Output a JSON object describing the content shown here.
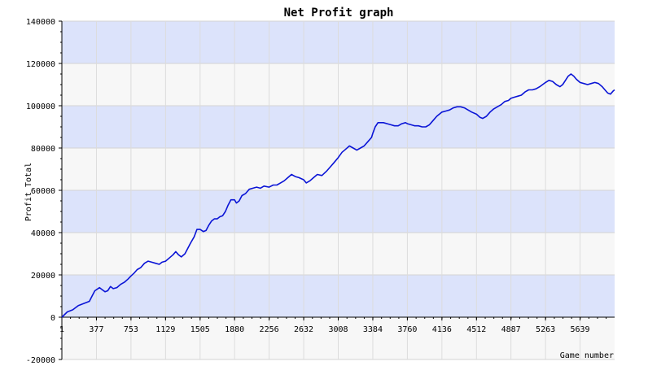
{
  "chart_data": {
    "type": "line",
    "title": "Net Profit graph",
    "xlabel": "Game number",
    "ylabel": "Profit Total",
    "xlim": [
      1,
      6015
    ],
    "ylim": [
      -20000,
      140000
    ],
    "x_ticks": [
      "1",
      "377",
      "753",
      "1129",
      "1505",
      "1880",
      "2256",
      "2632",
      "3008",
      "3384",
      "3760",
      "4136",
      "4512",
      "4887",
      "5263",
      "5639"
    ],
    "y_ticks": [
      "140000",
      "120000",
      "100000",
      "80000",
      "60000",
      "40000",
      "20000",
      "0",
      "-20000"
    ],
    "grid": true,
    "band_colors": [
      "#dce3fb",
      "#f7f7f7"
    ],
    "line_color": "#0a14d6",
    "series": [
      {
        "points": [
          [
            1,
            0
          ],
          [
            60,
            2500
          ],
          [
            120,
            3500
          ],
          [
            180,
            5500
          ],
          [
            240,
            6500
          ],
          [
            300,
            7500
          ],
          [
            330,
            10000
          ],
          [
            360,
            12500
          ],
          [
            377,
            13000
          ],
          [
            410,
            14000
          ],
          [
            440,
            13000
          ],
          [
            470,
            12000
          ],
          [
            500,
            12500
          ],
          [
            530,
            14500
          ],
          [
            560,
            13500
          ],
          [
            600,
            14000
          ],
          [
            640,
            15500
          ],
          [
            680,
            16500
          ],
          [
            720,
            18000
          ],
          [
            753,
            19500
          ],
          [
            790,
            21000
          ],
          [
            820,
            22500
          ],
          [
            860,
            23500
          ],
          [
            900,
            25500
          ],
          [
            940,
            26500
          ],
          [
            980,
            26000
          ],
          [
            1020,
            25500
          ],
          [
            1060,
            25000
          ],
          [
            1090,
            26000
          ],
          [
            1129,
            26500
          ],
          [
            1170,
            28000
          ],
          [
            1210,
            29500
          ],
          [
            1240,
            31000
          ],
          [
            1270,
            29500
          ],
          [
            1300,
            28500
          ],
          [
            1340,
            30000
          ],
          [
            1370,
            32500
          ],
          [
            1400,
            35000
          ],
          [
            1440,
            38000
          ],
          [
            1470,
            41500
          ],
          [
            1505,
            41500
          ],
          [
            1540,
            40500
          ],
          [
            1570,
            41000
          ],
          [
            1600,
            43500
          ],
          [
            1630,
            45500
          ],
          [
            1660,
            46500
          ],
          [
            1690,
            46500
          ],
          [
            1720,
            47500
          ],
          [
            1750,
            48000
          ],
          [
            1780,
            50000
          ],
          [
            1810,
            53000
          ],
          [
            1840,
            55500
          ],
          [
            1880,
            55500
          ],
          [
            1900,
            54000
          ],
          [
            1930,
            55000
          ],
          [
            1960,
            57500
          ],
          [
            2000,
            58500
          ],
          [
            2040,
            60500
          ],
          [
            2080,
            61000
          ],
          [
            2120,
            61500
          ],
          [
            2160,
            61000
          ],
          [
            2200,
            62000
          ],
          [
            2256,
            61500
          ],
          [
            2300,
            62500
          ],
          [
            2340,
            62500
          ],
          [
            2380,
            63500
          ],
          [
            2420,
            64500
          ],
          [
            2460,
            66000
          ],
          [
            2500,
            67500
          ],
          [
            2540,
            66500
          ],
          [
            2580,
            66000
          ],
          [
            2632,
            65000
          ],
          [
            2660,
            63500
          ],
          [
            2700,
            64500
          ],
          [
            2740,
            66000
          ],
          [
            2780,
            67500
          ],
          [
            2830,
            67000
          ],
          [
            2880,
            69000
          ],
          [
            2920,
            71000
          ],
          [
            2960,
            73000
          ],
          [
            3008,
            75500
          ],
          [
            3050,
            78000
          ],
          [
            3090,
            79500
          ],
          [
            3130,
            81000
          ],
          [
            3170,
            80000
          ],
          [
            3210,
            79000
          ],
          [
            3250,
            80000
          ],
          [
            3290,
            81000
          ],
          [
            3330,
            83000
          ],
          [
            3370,
            85000
          ],
          [
            3384,
            87000
          ],
          [
            3410,
            90000
          ],
          [
            3440,
            92000
          ],
          [
            3470,
            92000
          ],
          [
            3500,
            92000
          ],
          [
            3540,
            91500
          ],
          [
            3580,
            91000
          ],
          [
            3620,
            90500
          ],
          [
            3660,
            90500
          ],
          [
            3700,
            91500
          ],
          [
            3740,
            92000
          ],
          [
            3760,
            91500
          ],
          [
            3800,
            91000
          ],
          [
            3840,
            90500
          ],
          [
            3880,
            90500
          ],
          [
            3920,
            90000
          ],
          [
            3960,
            90000
          ],
          [
            4000,
            91000
          ],
          [
            4040,
            93000
          ],
          [
            4080,
            95000
          ],
          [
            4136,
            97000
          ],
          [
            4180,
            97500
          ],
          [
            4220,
            98000
          ],
          [
            4260,
            99000
          ],
          [
            4300,
            99500
          ],
          [
            4340,
            99500
          ],
          [
            4380,
            99000
          ],
          [
            4420,
            98000
          ],
          [
            4460,
            97000
          ],
          [
            4512,
            96000
          ],
          [
            4550,
            94500
          ],
          [
            4580,
            94000
          ],
          [
            4620,
            95000
          ],
          [
            4660,
            97000
          ],
          [
            4700,
            98500
          ],
          [
            4740,
            99500
          ],
          [
            4780,
            100500
          ],
          [
            4820,
            102000
          ],
          [
            4860,
            102500
          ],
          [
            4887,
            103500
          ],
          [
            4920,
            104000
          ],
          [
            4960,
            104500
          ],
          [
            5000,
            105000
          ],
          [
            5040,
            106500
          ],
          [
            5080,
            107500
          ],
          [
            5120,
            107500
          ],
          [
            5160,
            108000
          ],
          [
            5200,
            109000
          ],
          [
            5263,
            111000
          ],
          [
            5300,
            112000
          ],
          [
            5340,
            111500
          ],
          [
            5380,
            110000
          ],
          [
            5420,
            109000
          ],
          [
            5450,
            110000
          ],
          [
            5480,
            112000
          ],
          [
            5510,
            114000
          ],
          [
            5540,
            115000
          ],
          [
            5570,
            114000
          ],
          [
            5600,
            112500
          ],
          [
            5639,
            111000
          ],
          [
            5680,
            110500
          ],
          [
            5720,
            110000
          ],
          [
            5760,
            110500
          ],
          [
            5800,
            111000
          ],
          [
            5840,
            110500
          ],
          [
            5880,
            109000
          ],
          [
            5910,
            107500
          ],
          [
            5940,
            106000
          ],
          [
            5970,
            105500
          ],
          [
            6000,
            107000
          ],
          [
            6015,
            107500
          ]
        ]
      }
    ]
  }
}
